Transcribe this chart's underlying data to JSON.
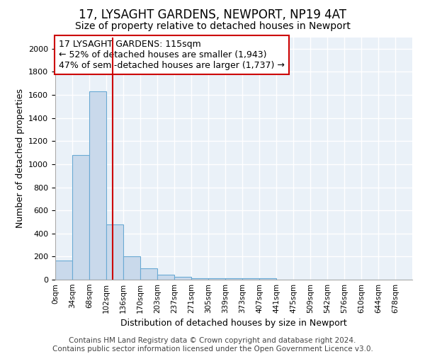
{
  "title1": "17, LYSAGHT GARDENS, NEWPORT, NP19 4AT",
  "title2": "Size of property relative to detached houses in Newport",
  "xlabel": "Distribution of detached houses by size in Newport",
  "ylabel": "Number of detached properties",
  "bar_labels": [
    "0sqm",
    "34sqm",
    "68sqm",
    "102sqm",
    "136sqm",
    "170sqm",
    "203sqm",
    "237sqm",
    "271sqm",
    "305sqm",
    "339sqm",
    "373sqm",
    "407sqm",
    "441sqm",
    "475sqm",
    "509sqm",
    "542sqm",
    "576sqm",
    "610sqm",
    "644sqm",
    "678sqm"
  ],
  "bar_values": [
    165,
    1080,
    1630,
    480,
    200,
    100,
    40,
    25,
    15,
    10,
    10,
    10,
    15,
    0,
    0,
    0,
    0,
    0,
    0,
    0,
    0
  ],
  "bar_color": "#c9d9eb",
  "bar_edge_color": "#6aaad4",
  "background_color": "#eaf1f8",
  "plot_bg_color": "#eaf1f8",
  "outer_bg_color": "#ffffff",
  "grid_color": "#ffffff",
  "red_line_x": 115,
  "bin_width": 34,
  "ylim": [
    0,
    2100
  ],
  "annotation_text": "17 LYSAGHT GARDENS: 115sqm\n← 52% of detached houses are smaller (1,943)\n47% of semi-detached houses are larger (1,737) →",
  "annotation_box_color": "#ffffff",
  "annotation_box_edge": "#cc0000",
  "footer_text": "Contains HM Land Registry data © Crown copyright and database right 2024.\nContains public sector information licensed under the Open Government Licence v3.0.",
  "title1_fontsize": 12,
  "title2_fontsize": 10,
  "annot_fontsize": 9,
  "footer_fontsize": 7.5,
  "ylabel_fontsize": 9,
  "xlabel_fontsize": 9
}
